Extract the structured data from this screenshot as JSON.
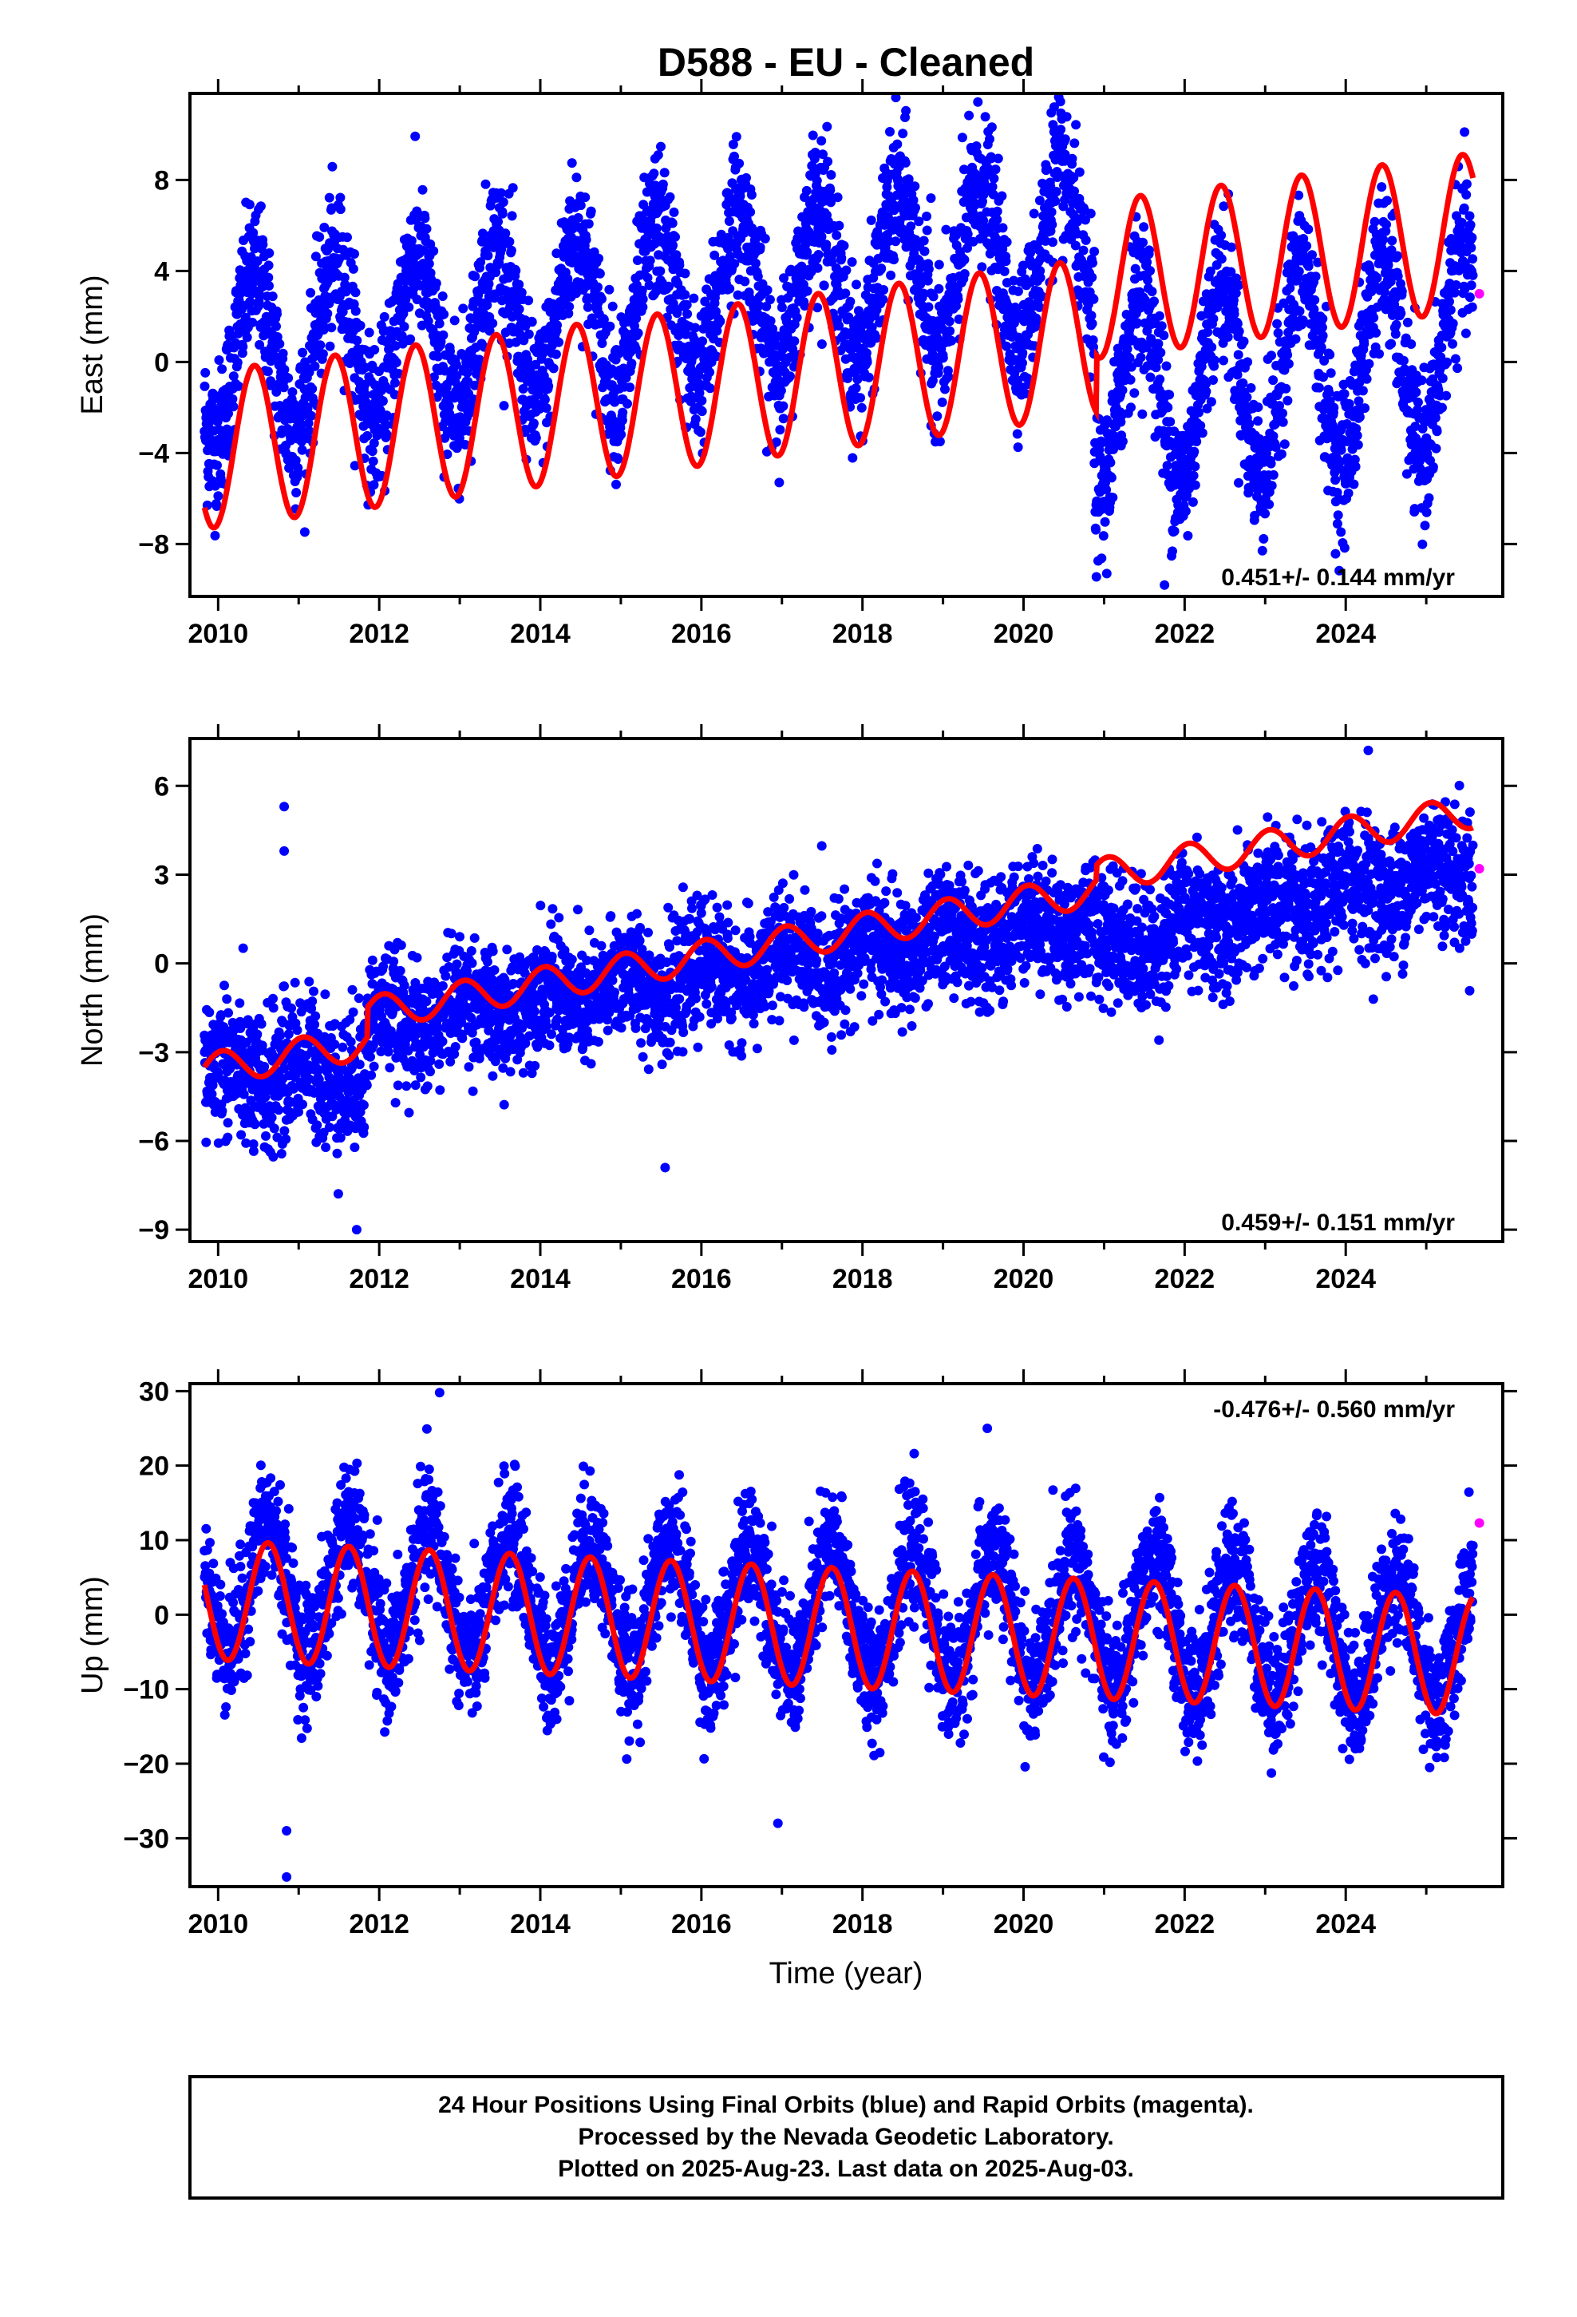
{
  "title": "D588  - EU - Cleaned",
  "colors": {
    "final": "#0000ff",
    "rapid": "#ff00ff",
    "model": "#ff0000",
    "frame": "#000000"
  },
  "xlabel_bottom": "Time (year)",
  "footer": {
    "line1": "24 Hour Positions Using Final Orbits (blue) and Rapid Orbits (magenta).",
    "line2": "Processed by the Nevada Geodetic Laboratory.",
    "line3": "Plotted on 2025-Aug-23. Last data on 2025-Aug-03."
  },
  "chart_data": [
    {
      "type": "scatter",
      "ylabel": "East (mm)",
      "xlim": [
        2009.65,
        2025.95
      ],
      "ylim": [
        -10.3,
        11.8
      ],
      "xticks": [
        2010,
        2012,
        2014,
        2016,
        2018,
        2020,
        2022,
        2024
      ],
      "yticks": [
        -8,
        -4,
        0,
        4,
        8
      ],
      "rate_label": "0.451+/- 0.144 mm/yr",
      "rate_position": "bottom-right",
      "data_start": 2009.83,
      "data_end": 2025.58,
      "series": [
        {
          "name": "Final Orbits",
          "color": "blue",
          "kind": "points",
          "segments": [
            {
              "from": 2009.83,
              "to": 2020.88,
              "offset": 0.0,
              "trend": 0.45,
              "amplitude": 3.5,
              "noise": 1.6
            },
            {
              "from": 2020.88,
              "to": 2025.58,
              "offset": -1.5,
              "trend": 0.45,
              "amplitude": 4.3,
              "noise": 1.6
            }
          ],
          "outliers": [
            [
              2020.38,
              11.2
            ],
            [
              2021.75,
              -9.8
            ],
            [
              2018.85,
              7.2
            ],
            [
              2017.55,
              7.5
            ]
          ]
        },
        {
          "name": "Rapid Orbits",
          "color": "magenta",
          "kind": "points",
          "points": [
            [
              2025.58,
              3.0
            ]
          ]
        },
        {
          "name": "Model",
          "color": "red",
          "kind": "line",
          "model": {
            "t0": 2009.83,
            "start": -6.4,
            "trend": 0.451,
            "amplitude": 3.45,
            "phase_peak": 0.45,
            "steps": [
              [
                2020.9,
                2.5
              ]
            ]
          }
        }
      ]
    },
    {
      "type": "scatter",
      "ylabel": "North (mm)",
      "xlim": [
        2009.65,
        2025.95
      ],
      "ylim": [
        -9.4,
        7.6
      ],
      "xticks": [
        2010,
        2012,
        2014,
        2016,
        2018,
        2020,
        2022,
        2024
      ],
      "yticks": [
        -9,
        -6,
        -3,
        0,
        3,
        6
      ],
      "rate_label": "0.459+/- 0.151 mm/yr",
      "rate_position": "bottom-right",
      "data_start": 2009.83,
      "data_end": 2025.58,
      "series": [
        {
          "name": "Final Orbits",
          "color": "blue",
          "kind": "points",
          "segments": [
            {
              "from": 2009.83,
              "to": 2011.85,
              "offset": -3.8,
              "trend": 0.1,
              "amplitude": 0.5,
              "noise": 1.2
            },
            {
              "from": 2011.85,
              "to": 2020.88,
              "offset": -2.1,
              "trend": 0.4,
              "amplitude": 0.5,
              "noise": 1.0
            },
            {
              "from": 2020.88,
              "to": 2025.58,
              "offset": 0.5,
              "trend": 0.6,
              "amplitude": 0.5,
              "noise": 1.1
            }
          ],
          "outliers": [
            [
              2010.82,
              5.3
            ],
            [
              2010.82,
              3.8
            ],
            [
              2011.72,
              -9.0
            ],
            [
              2024.28,
              7.2
            ],
            [
              2015.55,
              -6.9
            ]
          ]
        },
        {
          "name": "Rapid Orbits",
          "color": "magenta",
          "kind": "points",
          "points": [
            [
              2025.58,
              3.2
            ]
          ]
        },
        {
          "name": "Model",
          "color": "red",
          "kind": "line",
          "model": {
            "t0": 2009.83,
            "start": -3.5,
            "trend": 0.459,
            "amplitude": 0.55,
            "phase_peak": 0.05,
            "steps": [
              [
                2011.85,
                1.0
              ],
              [
                2020.9,
                0.5
              ]
            ]
          }
        }
      ]
    },
    {
      "type": "scatter",
      "ylabel": "Up (mm)",
      "xlim": [
        2009.65,
        2025.95
      ],
      "ylim": [
        -36.5,
        31.0
      ],
      "xticks": [
        2010,
        2012,
        2014,
        2016,
        2018,
        2020,
        2022,
        2024
      ],
      "yticks": [
        -30,
        -20,
        -10,
        0,
        10,
        20,
        30
      ],
      "rate_label": "-0.476+/- 0.560 mm/yr",
      "rate_position": "top-right",
      "data_start": 2009.83,
      "data_end": 2025.58,
      "series": [
        {
          "name": "Final Orbits",
          "color": "blue",
          "kind": "points",
          "segments": [
            {
              "from": 2009.83,
              "to": 2025.58,
              "offset": 4.0,
              "trend": -0.476,
              "amplitude": 8.5,
              "noise": 4.2
            }
          ],
          "outliers": [
            [
              2010.85,
              -35.2
            ],
            [
              2010.85,
              -29.0
            ],
            [
              2012.75,
              29.8
            ],
            [
              2016.95,
              -28.0
            ],
            [
              2019.55,
              25.0
            ]
          ]
        },
        {
          "name": "Rapid Orbits",
          "color": "magenta",
          "kind": "points",
          "points": [
            [
              2025.58,
              12.3
            ]
          ]
        },
        {
          "name": "Model",
          "color": "red",
          "kind": "line",
          "model": {
            "t0": 2009.83,
            "start": 4.0,
            "trend": -0.476,
            "amplitude": 8.0,
            "phase_peak": 0.62,
            "steps": []
          }
        }
      ]
    }
  ]
}
